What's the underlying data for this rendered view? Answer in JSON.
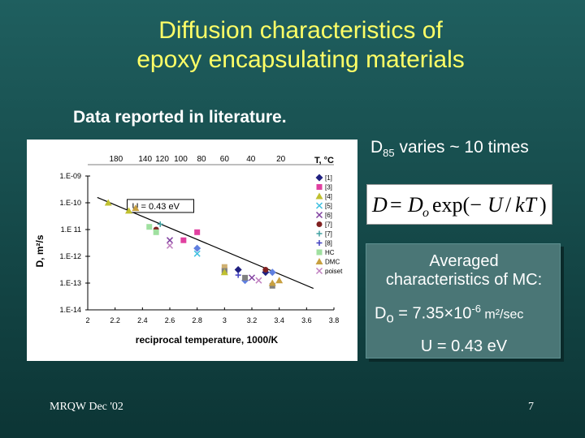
{
  "slide": {
    "title_line1": "Diffusion characteristics of",
    "title_line2": "epoxy encapsulating materials",
    "subtitle": "Data reported in literature.",
    "d85_prefix": "D",
    "d85_sub": "85",
    "d85_suffix": " varies ~ 10 times",
    "equation": "D = D_o exp(−U / kT)",
    "mc_line1": "Averaged",
    "mc_line2": "characteristics of MC:",
    "d0_prefix": "D",
    "d0_sub": "o",
    "d0_value": " = 7.35×10",
    "d0_exp": "-6",
    "d0_unit": " m²/sec",
    "u_text": "U = 0.43 eV",
    "footer_left": "MRQW Dec '02",
    "footer_right": "7"
  },
  "chart_data": {
    "type": "scatter",
    "xlabel": "reciprocal temperature, 1000/K",
    "ylabel": "D, m²/s",
    "top_axis_label": "T, °C",
    "annotation": "U = 0.43 eV",
    "xlim": [
      2.0,
      3.8
    ],
    "ylim": [
      -14,
      -9
    ],
    "y_log": true,
    "x_ticks": [
      "2",
      "2.2",
      "2.4",
      "2.6",
      "2.8",
      "3",
      "3.2",
      "3.4",
      "3.6",
      "3.8"
    ],
    "x_tick_values": [
      2.0,
      2.2,
      2.4,
      2.6,
      2.8,
      3.0,
      3.2,
      3.4,
      3.6,
      3.8
    ],
    "y_ticks": [
      "1.E-09",
      "1.E-10",
      "1.E 11",
      "1.E-12",
      "1.E-13",
      "1.E-14"
    ],
    "y_tick_values": [
      -9,
      -10,
      -11,
      -12,
      -13,
      -14
    ],
    "top_ticks": [
      "180",
      "140",
      "120",
      "100",
      "80",
      "60",
      "40",
      "20"
    ],
    "top_tick_values": [
      2.207,
      2.42,
      2.544,
      2.68,
      2.832,
      3.0,
      3.193,
      3.412
    ],
    "trend_line": {
      "x": [
        2.07,
        3.65
      ],
      "log10_y": [
        -9.8,
        -13.2
      ]
    },
    "series": [
      {
        "name": "[1]",
        "color": "#202080",
        "marker": "diamond",
        "points": [
          [
            3.1,
            -12.5
          ],
          [
            3.3,
            -12.6
          ]
        ]
      },
      {
        "name": "[3]",
        "color": "#e040a0",
        "marker": "square",
        "points": [
          [
            2.8,
            -11.1
          ],
          [
            2.7,
            -11.4
          ]
        ]
      },
      {
        "name": "[4]",
        "color": "#c0c030",
        "marker": "triangle",
        "points": [
          [
            2.15,
            -10.0
          ],
          [
            2.3,
            -10.3
          ],
          [
            3.0,
            -12.6
          ]
        ]
      },
      {
        "name": "[5]",
        "color": "#40c0e0",
        "marker": "x",
        "points": [
          [
            2.8,
            -11.9
          ]
        ]
      },
      {
        "name": "[6]",
        "color": "#8040a0",
        "marker": "x",
        "points": [
          [
            2.6,
            -11.4
          ],
          [
            3.2,
            -12.8
          ]
        ]
      },
      {
        "name": "[7]",
        "color": "#802020",
        "marker": "circle",
        "points": [
          [
            2.5,
            -11.0
          ],
          [
            3.3,
            -12.5
          ]
        ]
      },
      {
        "name": "[7]",
        "color": "#40a0a0",
        "marker": "plus",
        "points": [
          [
            2.53,
            -10.8
          ]
        ]
      },
      {
        "name": "[8]",
        "color": "#4040c0",
        "marker": "plus",
        "points": [
          [
            3.1,
            -12.7
          ]
        ]
      },
      {
        "name": "HC",
        "color": "#a0e0a0",
        "marker": "square",
        "points": [
          [
            2.45,
            -10.9
          ],
          [
            2.5,
            -11.1
          ]
        ]
      },
      {
        "name": "DMC",
        "color": "#c8a040",
        "marker": "triangle",
        "points": [
          [
            2.35,
            -10.2
          ],
          [
            3.35,
            -13.0
          ],
          [
            3.4,
            -12.9
          ]
        ]
      },
      {
        "name": "poiset",
        "color": "#c080c0",
        "marker": "x",
        "points": [
          [
            2.6,
            -11.6
          ],
          [
            3.25,
            -12.9
          ]
        ]
      }
    ],
    "extra_points": [
      {
        "color": "#6080e0",
        "marker": "diamond",
        "points": [
          [
            2.8,
            -11.7
          ],
          [
            3.15,
            -12.9
          ],
          [
            3.35,
            -12.6
          ]
        ]
      },
      {
        "color": "#d0b070",
        "marker": "square",
        "points": [
          [
            3.0,
            -12.4
          ],
          [
            3.0,
            -12.5
          ]
        ]
      },
      {
        "color": "#808080",
        "marker": "square",
        "points": [
          [
            3.0,
            -12.55
          ],
          [
            3.15,
            -12.8
          ],
          [
            3.35,
            -13.1
          ]
        ]
      }
    ]
  }
}
